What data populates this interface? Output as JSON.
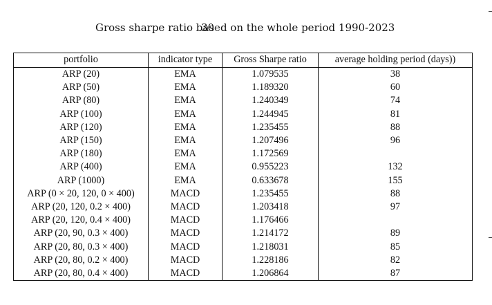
{
  "caption": {
    "before": "Gross sharpe ratio bas",
    "after": "d on the whole period 1990-2023"
  },
  "page_number": "30",
  "table": {
    "headers": [
      "portfolio",
      "indicator type",
      "Gross Sharpe ratio",
      "average holding period (days))"
    ],
    "rows": [
      [
        "ARP (20)",
        "EMA",
        "1.079535",
        "38"
      ],
      [
        "ARP (50)",
        "EMA",
        "1.189320",
        "60"
      ],
      [
        "ARP (80)",
        "EMA",
        "1.240349",
        "74"
      ],
      [
        "ARP (100)",
        "EMA",
        "1.244945",
        "81"
      ],
      [
        "ARP (120)",
        "EMA",
        "1.235455",
        "88"
      ],
      [
        "ARP (150)",
        "EMA",
        "1.207496",
        "96"
      ],
      [
        "ARP (180)",
        "EMA",
        "1.172569",
        ""
      ],
      [
        "ARP (400)",
        "EMA",
        "0.955223",
        "132"
      ],
      [
        "ARP (1000)",
        "EMA",
        "0.633678",
        "155"
      ],
      [
        "ARP (0 × 20, 120, 0 × 400)",
        "MACD",
        "1.235455",
        "88"
      ],
      [
        "ARP (20, 120, 0.2 × 400)",
        "MACD",
        "1.203418",
        "97"
      ],
      [
        "ARP (20, 120, 0.4 × 400)",
        "MACD",
        "1.176466",
        ""
      ],
      [
        "ARP (20, 90, 0.3 × 400)",
        "MACD",
        "1.214172",
        "89"
      ],
      [
        "ARP (20, 80, 0.3 × 400)",
        "MACD",
        "1.218031",
        "85"
      ],
      [
        "ARP (20, 80, 0.2 × 400)",
        "MACD",
        "1.228186",
        "82"
      ],
      [
        "ARP (20, 80, 0.4 × 400)",
        "MACD",
        "1.206864",
        "87"
      ]
    ]
  }
}
